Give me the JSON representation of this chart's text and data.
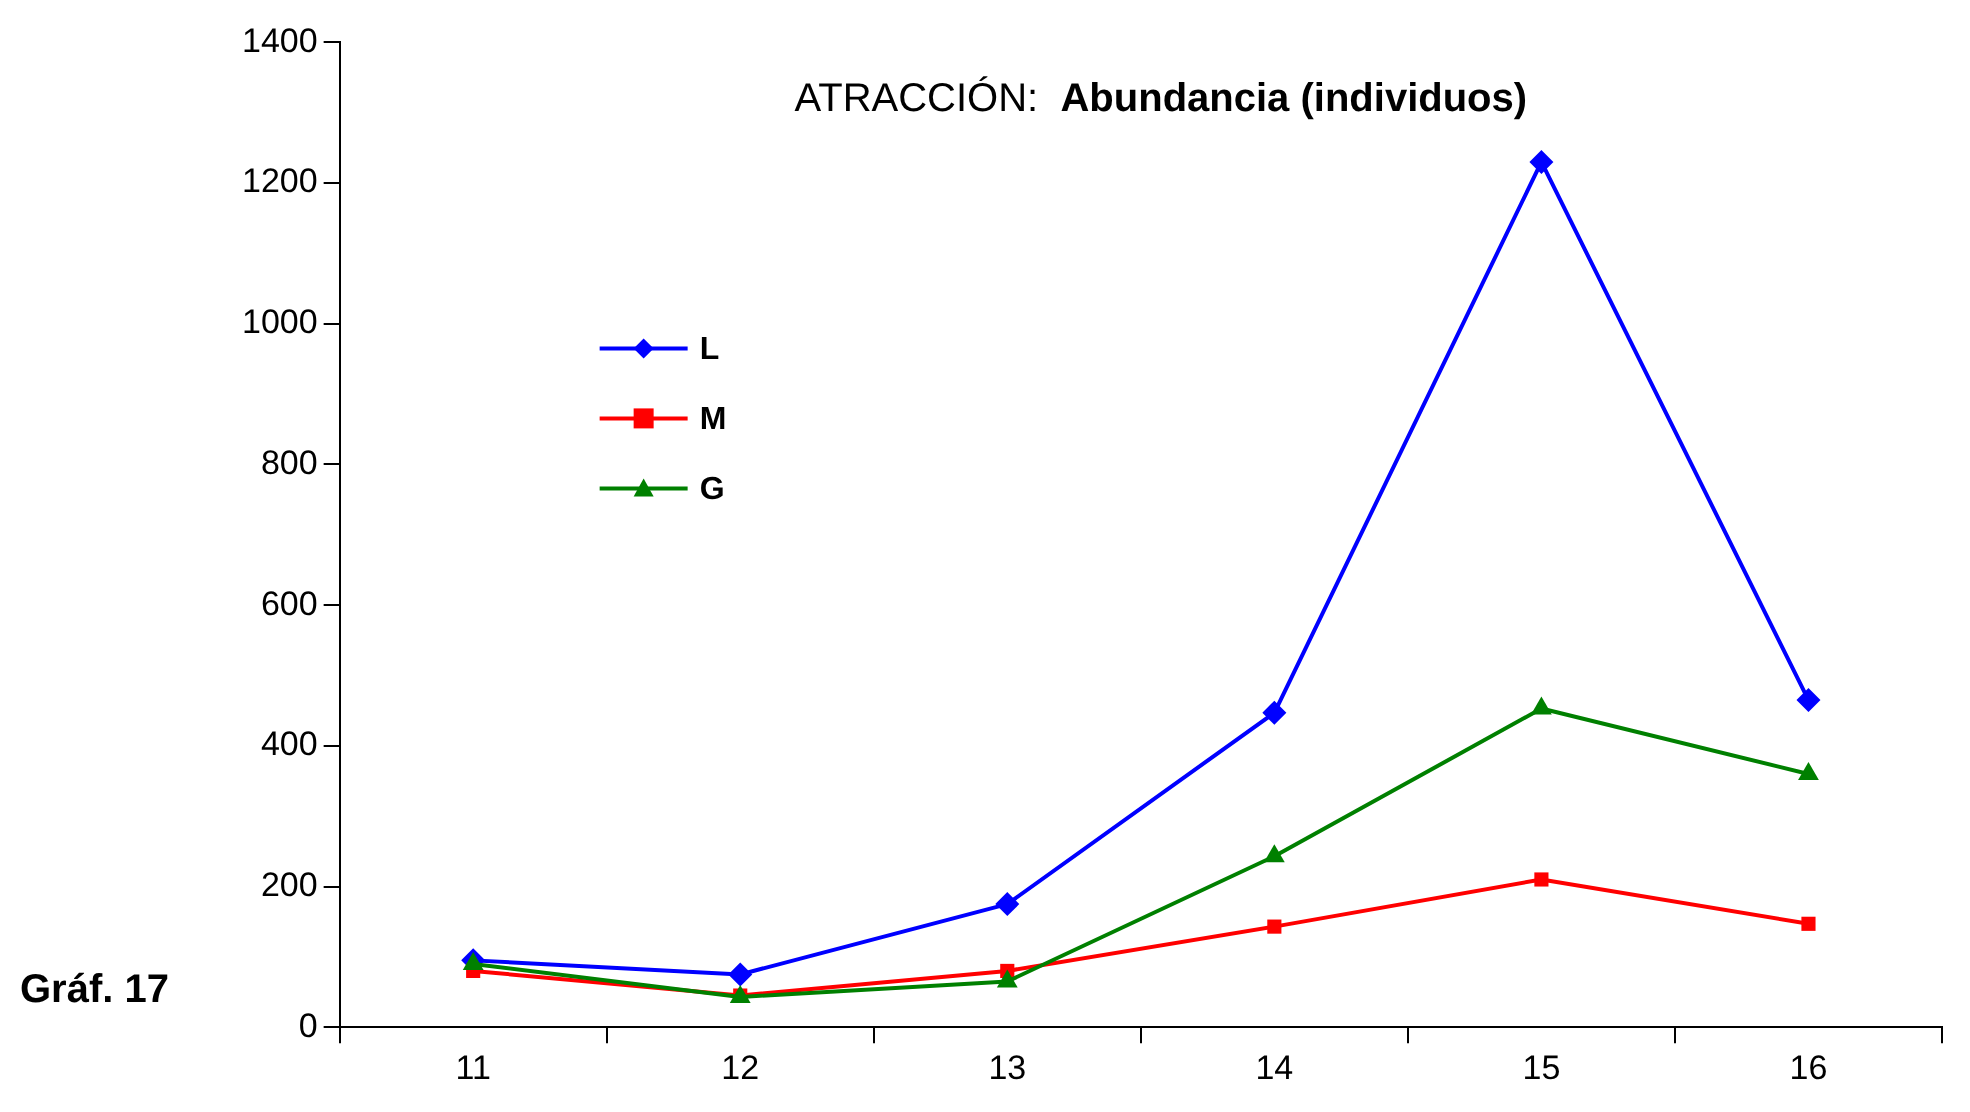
{
  "chart_data": {
    "type": "line",
    "title": "ATRACCIÓN:",
    "subtitle": "Abundancia (individuos)",
    "annotations": [
      "Gráf. 17"
    ],
    "categories": [
      "11",
      "12",
      "13",
      "14",
      "15",
      "16"
    ],
    "series": [
      {
        "name": "L",
        "color": "#0000ff",
        "marker": "diamond",
        "values": [
          95,
          75,
          175,
          447,
          1230,
          465
        ]
      },
      {
        "name": "M",
        "color": "#ff0000",
        "marker": "square",
        "values": [
          80,
          45,
          80,
          143,
          210,
          147
        ]
      },
      {
        "name": "G",
        "color": "#008000",
        "marker": "triangle",
        "values": [
          90,
          43,
          65,
          243,
          453,
          360
        ]
      }
    ],
    "ylim": [
      0,
      1400
    ],
    "yticks": [
      0,
      200,
      400,
      600,
      800,
      1000,
      1200,
      1400
    ],
    "legend": "top left",
    "line_style": "solid"
  }
}
